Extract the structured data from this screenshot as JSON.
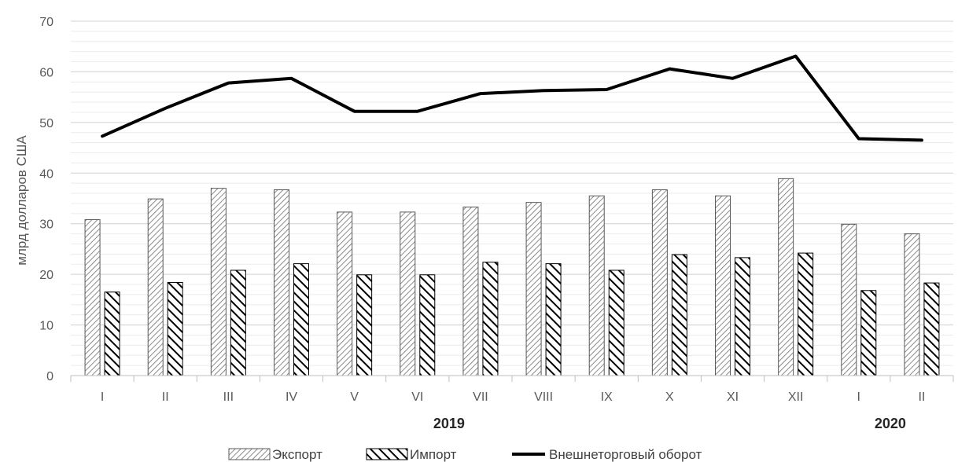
{
  "chart_data": {
    "type": "bar",
    "ylabel": "млрд долларов США",
    "xlabel": "",
    "ylim": [
      0,
      70
    ],
    "yticks": [
      0,
      10,
      20,
      30,
      40,
      50,
      60,
      70
    ],
    "grid": true,
    "categories": [
      "I",
      "II",
      "III",
      "IV",
      "V",
      "VI",
      "VII",
      "VIII",
      "IX",
      "X",
      "XI",
      "XII",
      "I",
      "II"
    ],
    "year_groups": [
      {
        "label": "2019",
        "start": 0,
        "end": 11
      },
      {
        "label": "2020",
        "start": 12,
        "end": 13
      }
    ],
    "series": [
      {
        "name": "Экспорт",
        "kind": "bar",
        "pattern": "light-diagonal",
        "values": [
          30.8,
          34.9,
          37.0,
          36.7,
          32.3,
          32.3,
          33.3,
          34.2,
          35.5,
          36.7,
          35.5,
          38.9,
          29.9,
          28.0
        ]
      },
      {
        "name": "Импорт",
        "kind": "bar",
        "pattern": "wide-downward-diagonal",
        "values": [
          16.5,
          18.4,
          20.8,
          22.1,
          19.9,
          19.9,
          22.4,
          22.1,
          20.8,
          23.9,
          23.3,
          24.2,
          16.8,
          18.3
        ]
      },
      {
        "name": "Внешнеторговый оборот",
        "kind": "line",
        "color": "#000000",
        "values": [
          47.3,
          52.8,
          57.8,
          58.7,
          52.2,
          52.2,
          55.7,
          56.3,
          56.5,
          60.6,
          58.7,
          63.1,
          46.8,
          46.5
        ]
      }
    ],
    "legend_position": "bottom"
  }
}
